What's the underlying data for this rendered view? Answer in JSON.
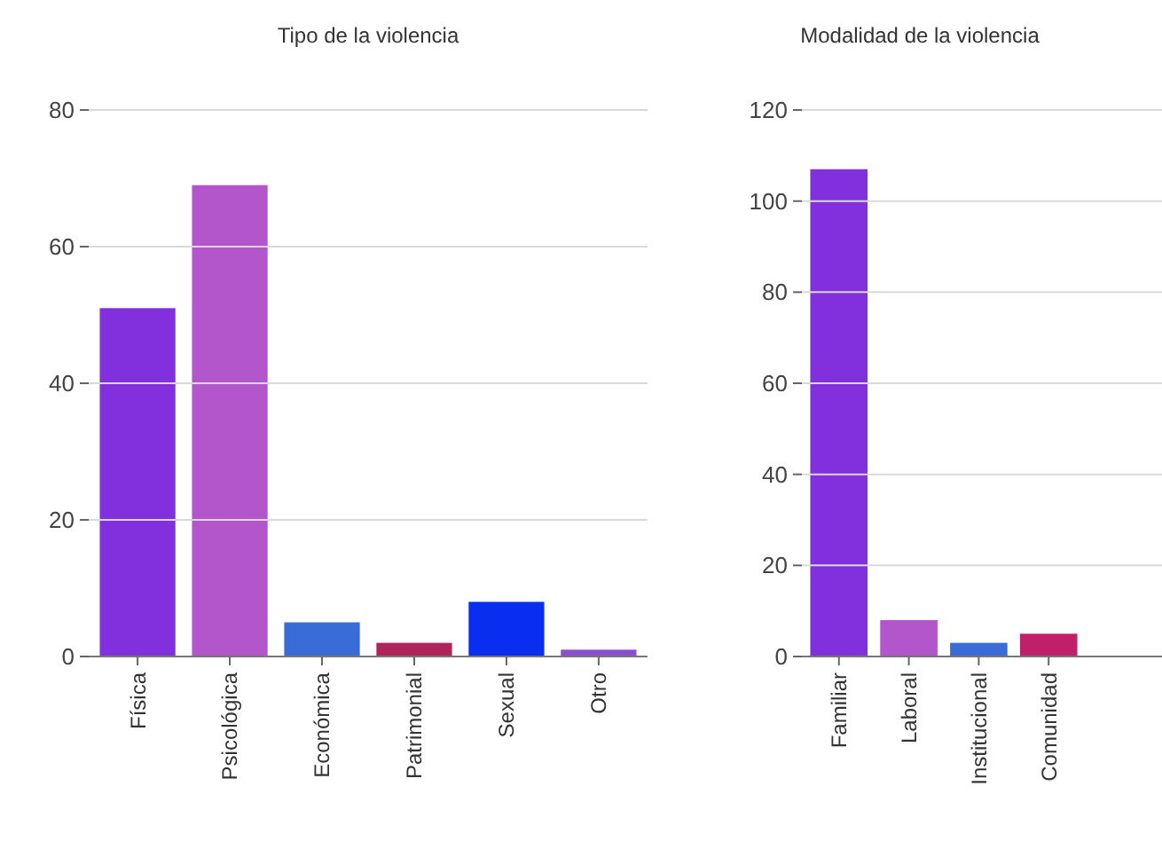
{
  "chart_data": [
    {
      "type": "bar",
      "title": "Tipo de la violencia",
      "categories": [
        "Física",
        "Psicológica",
        "Económica",
        "Patrimonial",
        "Sexual",
        "Otro"
      ],
      "values": [
        51,
        69,
        5,
        2,
        8,
        1
      ],
      "colors": [
        "#8230de",
        "#b356cc",
        "#3a6cd8",
        "#b0245c",
        "#0a2ef0",
        "#8a4fd0"
      ],
      "ylim": [
        0,
        80
      ],
      "yticks": [
        0,
        20,
        40,
        60,
        80
      ],
      "grid": "y"
    },
    {
      "type": "bar",
      "title": "Modalidad de la violencia",
      "categories": [
        "Familiar",
        "Laboral",
        "Institucional",
        "Comunidad"
      ],
      "values": [
        107,
        8,
        3,
        5
      ],
      "colors": [
        "#8230de",
        "#b356cc",
        "#3a6cd8",
        "#c0206a"
      ],
      "ylim": [
        0,
        120
      ],
      "yticks": [
        0,
        20,
        40,
        60,
        80,
        100,
        120
      ],
      "grid": "y"
    }
  ]
}
